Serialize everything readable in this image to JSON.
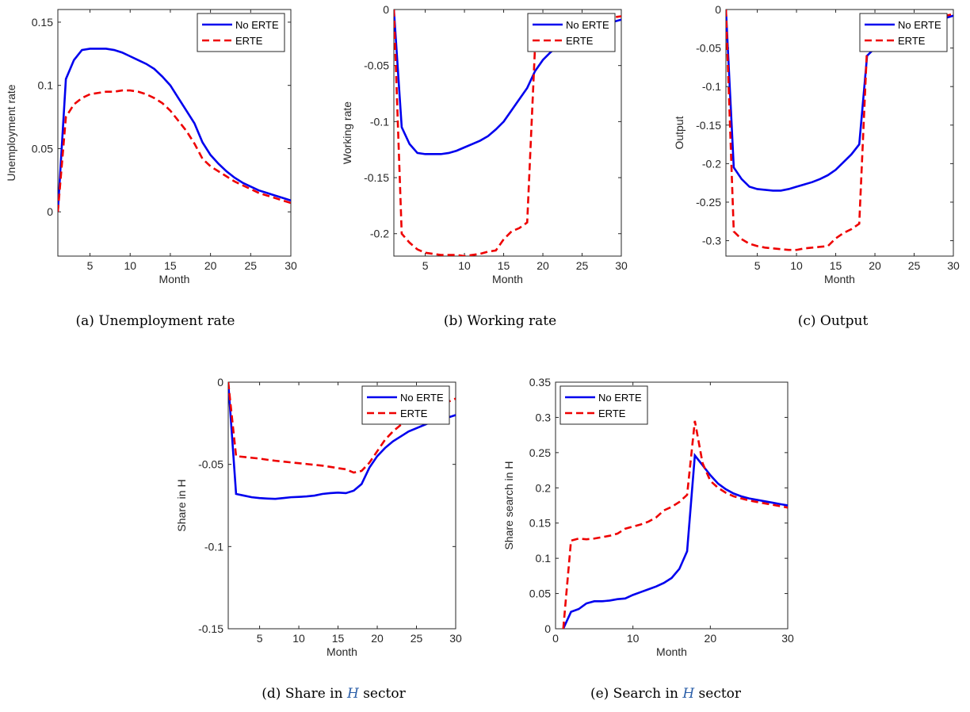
{
  "legend_labels": {
    "no_erte": "No ERTE",
    "erte": "ERTE"
  },
  "colors": {
    "no_erte": "#0000ee",
    "erte": "#ee0000"
  },
  "chart_data": [
    {
      "id": "a",
      "type": "line",
      "title": "",
      "caption": "(a)  Unemployment rate",
      "xlabel": "Month",
      "ylabel": "Unemployment rate",
      "xlim": [
        1,
        30
      ],
      "ylim": [
        -0.035,
        0.16
      ],
      "xticks": [
        5,
        10,
        15,
        20,
        25,
        30
      ],
      "yticks": [
        0,
        0.05,
        0.1,
        0.15
      ],
      "ytick_labels": [
        "0",
        "0.05",
        "0.1",
        "0.15"
      ],
      "legend": "top-right",
      "grid": false,
      "x": [
        1,
        2,
        3,
        4,
        5,
        6,
        7,
        8,
        9,
        10,
        11,
        12,
        13,
        14,
        15,
        16,
        17,
        18,
        19,
        20,
        21,
        22,
        23,
        24,
        25,
        26,
        27,
        28,
        29,
        30
      ],
      "series": [
        {
          "name": "No ERTE",
          "style": "solid",
          "values": [
            0,
            0.105,
            0.12,
            0.128,
            0.129,
            0.129,
            0.129,
            0.128,
            0.126,
            0.123,
            0.12,
            0.117,
            0.113,
            0.107,
            0.1,
            0.09,
            0.08,
            0.07,
            0.055,
            0.045,
            0.038,
            0.032,
            0.027,
            0.023,
            0.02,
            0.017,
            0.015,
            0.013,
            0.011,
            0.009
          ]
        },
        {
          "name": "ERTE",
          "style": "dashed",
          "values": [
            0,
            0.075,
            0.085,
            0.09,
            0.093,
            0.094,
            0.095,
            0.095,
            0.096,
            0.096,
            0.095,
            0.093,
            0.09,
            0.086,
            0.08,
            0.072,
            0.064,
            0.054,
            0.042,
            0.036,
            0.032,
            0.028,
            0.024,
            0.021,
            0.018,
            0.015,
            0.013,
            0.011,
            0.009,
            0.007
          ]
        }
      ]
    },
    {
      "id": "b",
      "type": "line",
      "title": "",
      "caption": "(b)  Working rate",
      "xlabel": "Month",
      "ylabel": "Working rate",
      "xlim": [
        1,
        30
      ],
      "ylim": [
        -0.22,
        0
      ],
      "xticks": [
        5,
        10,
        15,
        20,
        25,
        30
      ],
      "yticks": [
        0,
        -0.05,
        -0.1,
        -0.15,
        -0.2
      ],
      "ytick_labels": [
        "0",
        "-0.05",
        "-0.1",
        "-0.15",
        "-0.2"
      ],
      "legend": "top-right",
      "grid": false,
      "x": [
        1,
        2,
        3,
        4,
        5,
        6,
        7,
        8,
        9,
        10,
        11,
        12,
        13,
        14,
        15,
        16,
        17,
        18,
        19,
        20,
        21,
        22,
        23,
        24,
        25,
        26,
        27,
        28,
        29,
        30
      ],
      "series": [
        {
          "name": "No ERTE",
          "style": "solid",
          "values": [
            0,
            -0.105,
            -0.12,
            -0.128,
            -0.129,
            -0.129,
            -0.129,
            -0.128,
            -0.126,
            -0.123,
            -0.12,
            -0.117,
            -0.113,
            -0.107,
            -0.1,
            -0.09,
            -0.08,
            -0.07,
            -0.055,
            -0.045,
            -0.038,
            -0.032,
            -0.027,
            -0.023,
            -0.02,
            -0.017,
            -0.015,
            -0.013,
            -0.011,
            -0.009
          ]
        },
        {
          "name": "ERTE",
          "style": "dashed",
          "values": [
            0,
            -0.2,
            -0.208,
            -0.214,
            -0.217,
            -0.218,
            -0.219,
            -0.219,
            -0.219,
            -0.22,
            -0.219,
            -0.218,
            -0.216,
            -0.215,
            -0.205,
            -0.198,
            -0.195,
            -0.19,
            -0.033,
            -0.03,
            -0.025,
            -0.021,
            -0.018,
            -0.015,
            -0.013,
            -0.011,
            -0.009,
            -0.008,
            -0.007,
            -0.006
          ]
        }
      ]
    },
    {
      "id": "c",
      "type": "line",
      "title": "",
      "caption": "(c)  Output",
      "xlabel": "Month",
      "ylabel": "Output",
      "xlim": [
        1,
        30
      ],
      "ylim": [
        -0.32,
        0
      ],
      "xticks": [
        5,
        10,
        15,
        20,
        25,
        30
      ],
      "yticks": [
        0,
        -0.05,
        -0.1,
        -0.15,
        -0.2,
        -0.25,
        -0.3
      ],
      "ytick_labels": [
        "0",
        "-0.05",
        "-0.1",
        "-0.15",
        "-0.2",
        "-0.25",
        "-0.3"
      ],
      "legend": "top-right",
      "grid": false,
      "x": [
        1,
        2,
        3,
        4,
        5,
        6,
        7,
        8,
        9,
        10,
        11,
        12,
        13,
        14,
        15,
        16,
        17,
        18,
        19,
        20,
        21,
        22,
        23,
        24,
        25,
        26,
        27,
        28,
        29,
        30
      ],
      "series": [
        {
          "name": "No ERTE",
          "style": "solid",
          "values": [
            0,
            -0.205,
            -0.22,
            -0.23,
            -0.233,
            -0.234,
            -0.235,
            -0.235,
            -0.233,
            -0.23,
            -0.227,
            -0.224,
            -0.22,
            -0.215,
            -0.208,
            -0.198,
            -0.188,
            -0.175,
            -0.06,
            -0.05,
            -0.042,
            -0.035,
            -0.03,
            -0.026,
            -0.022,
            -0.019,
            -0.016,
            -0.013,
            -0.011,
            -0.008
          ]
        },
        {
          "name": "ERTE",
          "style": "dashed",
          "values": [
            0,
            -0.288,
            -0.298,
            -0.304,
            -0.307,
            -0.309,
            -0.31,
            -0.311,
            -0.312,
            -0.312,
            -0.31,
            -0.309,
            -0.308,
            -0.307,
            -0.297,
            -0.29,
            -0.285,
            -0.278,
            -0.048,
            -0.04,
            -0.033,
            -0.028,
            -0.024,
            -0.02,
            -0.017,
            -0.014,
            -0.012,
            -0.01,
            -0.008,
            -0.006
          ]
        }
      ]
    },
    {
      "id": "d",
      "type": "line",
      "title": "",
      "caption_prefix": "(d)  Share in ",
      "caption_math": "H",
      "caption_suffix": " sector",
      "xlabel": "Month",
      "ylabel": "Share in H",
      "xlim": [
        1,
        30
      ],
      "ylim": [
        -0.15,
        0
      ],
      "xticks": [
        5,
        10,
        15,
        20,
        25,
        30
      ],
      "yticks": [
        0,
        -0.05,
        -0.1,
        -0.15
      ],
      "ytick_labels": [
        "0",
        "-0.05",
        "-0.1",
        "-0.15"
      ],
      "legend": "top-right",
      "grid": false,
      "x": [
        1,
        2,
        3,
        4,
        5,
        6,
        7,
        8,
        9,
        10,
        11,
        12,
        13,
        14,
        15,
        16,
        17,
        18,
        19,
        20,
        21,
        22,
        23,
        24,
        25,
        26,
        27,
        28,
        29,
        30
      ],
      "series": [
        {
          "name": "No ERTE",
          "style": "solid",
          "values": [
            0,
            -0.068,
            -0.069,
            -0.07,
            -0.0705,
            -0.0708,
            -0.071,
            -0.0705,
            -0.07,
            -0.0698,
            -0.0695,
            -0.069,
            -0.068,
            -0.0675,
            -0.0672,
            -0.0675,
            -0.066,
            -0.062,
            -0.052,
            -0.045,
            -0.04,
            -0.036,
            -0.033,
            -0.03,
            -0.028,
            -0.026,
            -0.024,
            -0.023,
            -0.0215,
            -0.02
          ]
        },
        {
          "name": "ERTE",
          "style": "dashed",
          "values": [
            0,
            -0.045,
            -0.0455,
            -0.046,
            -0.0465,
            -0.0472,
            -0.0478,
            -0.0483,
            -0.0488,
            -0.0493,
            -0.0498,
            -0.0503,
            -0.0508,
            -0.0515,
            -0.0523,
            -0.053,
            -0.055,
            -0.054,
            -0.049,
            -0.042,
            -0.035,
            -0.03,
            -0.026,
            -0.023,
            -0.02,
            -0.018,
            -0.016,
            -0.014,
            -0.012,
            -0.01
          ]
        }
      ]
    },
    {
      "id": "e",
      "type": "line",
      "title": "",
      "caption_prefix": "(e)  Search in ",
      "caption_math": "H",
      "caption_suffix": " sector",
      "xlabel": "Month",
      "ylabel": "Share search in H",
      "xlim": [
        0,
        30
      ],
      "ylim": [
        0,
        0.35
      ],
      "xticks": [
        0,
        10,
        20,
        30
      ],
      "yticks": [
        0,
        0.05,
        0.1,
        0.15,
        0.2,
        0.25,
        0.3,
        0.35
      ],
      "ytick_labels": [
        "0",
        "0.05",
        "0.1",
        "0.15",
        "0.2",
        "0.25",
        "0.3",
        "0.35"
      ],
      "legend": "top-left",
      "grid": false,
      "x": [
        1,
        2,
        3,
        4,
        5,
        6,
        7,
        8,
        9,
        10,
        11,
        12,
        13,
        14,
        15,
        16,
        17,
        18,
        19,
        20,
        21,
        22,
        23,
        24,
        25,
        26,
        27,
        28,
        29,
        30
      ],
      "series": [
        {
          "name": "No ERTE",
          "style": "solid",
          "values": [
            0,
            0.024,
            0.028,
            0.036,
            0.039,
            0.039,
            0.04,
            0.042,
            0.043,
            0.048,
            0.052,
            0.056,
            0.06,
            0.065,
            0.072,
            0.085,
            0.11,
            0.246,
            0.232,
            0.218,
            0.206,
            0.198,
            0.192,
            0.188,
            0.185,
            0.183,
            0.181,
            0.179,
            0.177,
            0.175
          ]
        },
        {
          "name": "ERTE",
          "style": "dashed",
          "values": [
            0,
            0.125,
            0.128,
            0.127,
            0.128,
            0.13,
            0.132,
            0.135,
            0.142,
            0.145,
            0.148,
            0.152,
            0.158,
            0.168,
            0.173,
            0.18,
            0.19,
            0.295,
            0.235,
            0.21,
            0.2,
            0.193,
            0.188,
            0.185,
            0.182,
            0.18,
            0.178,
            0.176,
            0.174,
            0.172
          ]
        }
      ]
    }
  ]
}
